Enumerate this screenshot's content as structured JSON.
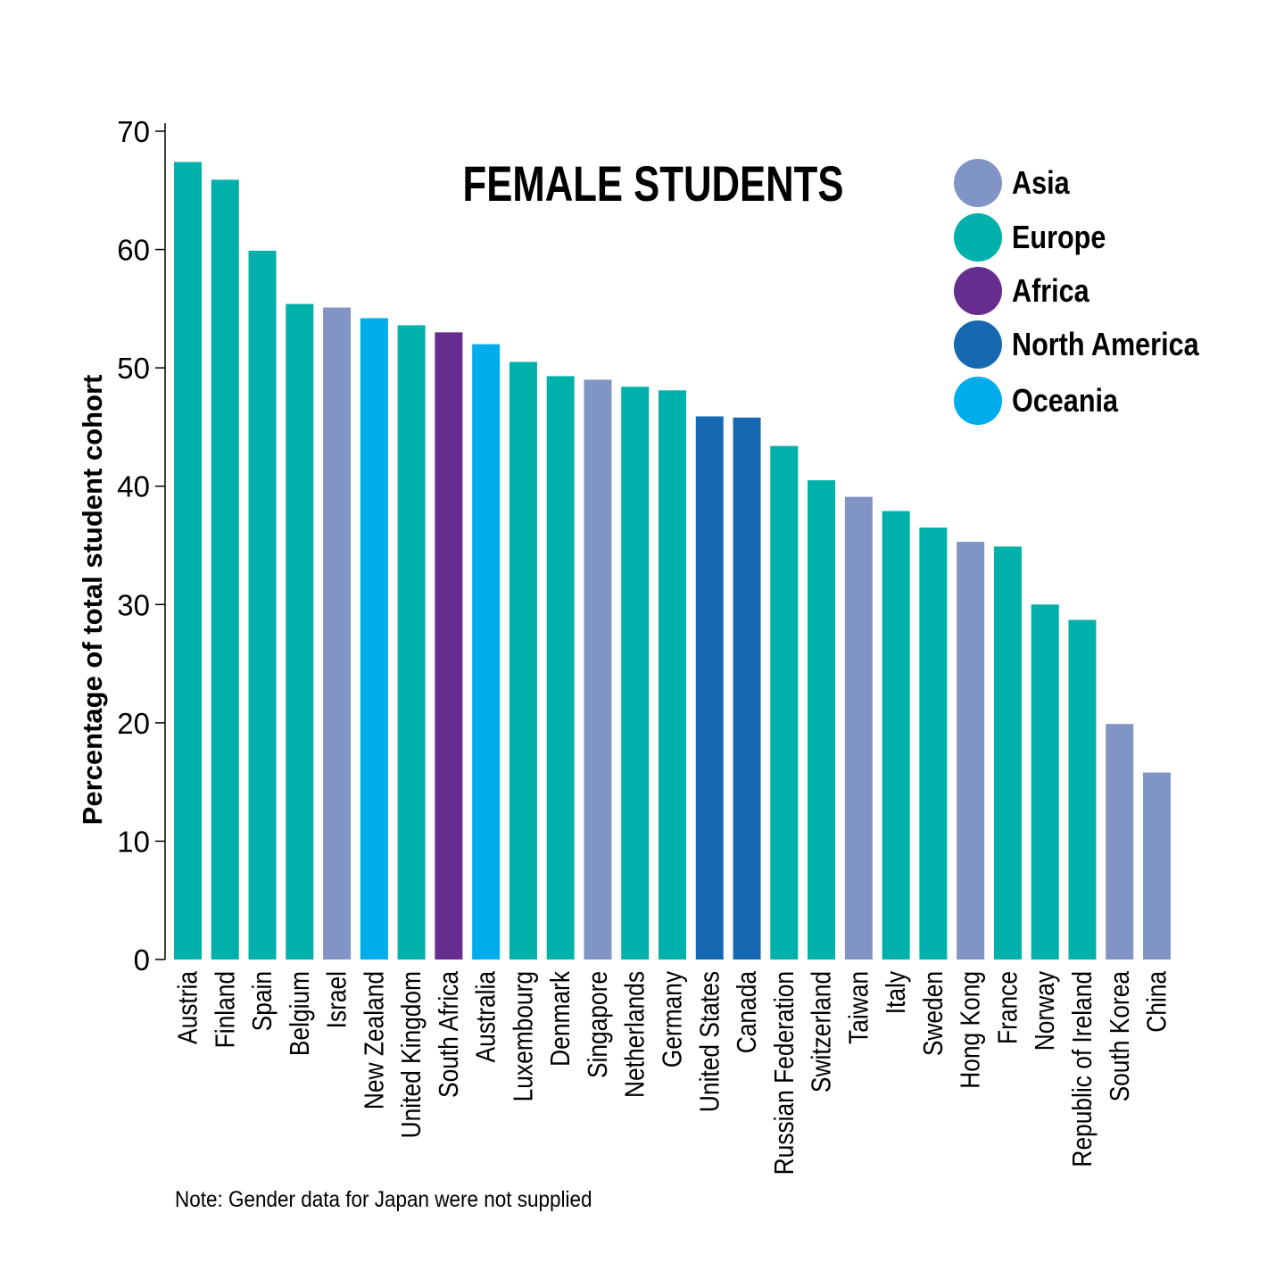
{
  "chart_data": {
    "type": "bar",
    "title": "FEMALE STUDENTS",
    "ylabel": "Percentage of total student cohort",
    "xlabel": "",
    "ylim": [
      0,
      70
    ],
    "yticks": [
      "0",
      "10",
      "20",
      "30",
      "40",
      "50",
      "60",
      "70"
    ],
    "grid": false,
    "legend_placement": "top-right",
    "legend": [
      {
        "name": "Asia",
        "color": "#8094c5"
      },
      {
        "name": "Europe",
        "color": "#00b0aa"
      },
      {
        "name": "Africa",
        "color": "#662d8f"
      },
      {
        "name": "North America",
        "color": "#1668b2"
      },
      {
        "name": "Oceania",
        "color": "#00adec"
      }
    ],
    "categories": [
      "Austria",
      "Finland",
      "Spain",
      "Belgium",
      "Israel",
      "New Zealand",
      "United Kingdom",
      "South Africa",
      "Australia",
      "Luxembourg",
      "Denmark",
      "Singapore",
      "Netherlands",
      "Germany",
      "United States",
      "Canada",
      "Russian Federation",
      "Switzerland",
      "Taiwan",
      "Italy",
      "Sweden",
      "Hong Kong",
      "France",
      "Norway",
      "Republic of Ireland",
      "South Korea",
      "China"
    ],
    "regions": [
      "Europe",
      "Europe",
      "Europe",
      "Europe",
      "Asia",
      "Oceania",
      "Europe",
      "Africa",
      "Oceania",
      "Europe",
      "Europe",
      "Asia",
      "Europe",
      "Europe",
      "North America",
      "North America",
      "Europe",
      "Europe",
      "Asia",
      "Europe",
      "Europe",
      "Asia",
      "Europe",
      "Europe",
      "Europe",
      "Asia",
      "Asia"
    ],
    "values": [
      67.4,
      65.9,
      59.9,
      55.4,
      55.1,
      54.2,
      53.6,
      53.0,
      52.0,
      50.5,
      49.3,
      49.0,
      48.4,
      48.1,
      45.9,
      45.8,
      43.4,
      40.5,
      39.1,
      37.9,
      36.5,
      35.3,
      34.9,
      30.0,
      28.7,
      19.9,
      15.8
    ],
    "note": "Note: Gender data for Japan were not supplied"
  }
}
